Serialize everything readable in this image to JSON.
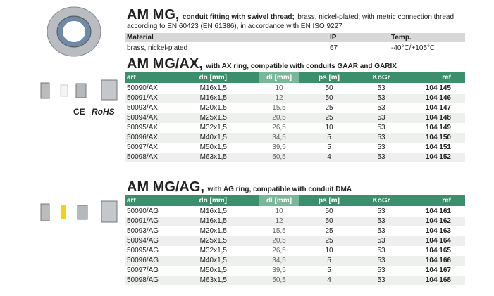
{
  "header": {
    "title": "AM MG,",
    "subtitle": "conduit fitting with swivel thread;",
    "description": [
      "brass, nickel-plated; with metric connection thread",
      "according to EN 60423 (EN 61386), in accordance with EN ISO 9227"
    ]
  },
  "material_table": {
    "columns": [
      "Material",
      "IP",
      "Temp."
    ],
    "rows": [
      [
        "brass, nickel-plated",
        "67",
        "-40°C/+105°C"
      ]
    ]
  },
  "certifications": [
    "CE",
    "RoHS"
  ],
  "sections": [
    {
      "title": "AM MG/AX,",
      "subtitle": "with AX ring, compatible with conduits GAAR and GARIX",
      "columns": [
        "art",
        "dn [mm]",
        "di [mm]",
        "ps [m]",
        "KoGr",
        "ref"
      ],
      "rows": [
        [
          "50090/AX",
          "M16x1,5",
          "10",
          "50",
          "53",
          "104 145"
        ],
        [
          "50091/AX",
          "M16x1,5",
          "12",
          "50",
          "53",
          "104 146"
        ],
        [
          "50093/AX",
          "M20x1,5",
          "15,5",
          "25",
          "53",
          "104 147"
        ],
        [
          "50094/AX",
          "M25x1,5",
          "20,5",
          "25",
          "53",
          "104 148"
        ],
        [
          "50095/AX",
          "M32x1,5",
          "26,5",
          "10",
          "53",
          "104 149"
        ],
        [
          "50096/AX",
          "M40x1,5",
          "34,5",
          "5",
          "53",
          "104 150"
        ],
        [
          "50097/AX",
          "M50x1,5",
          "39,5",
          "5",
          "53",
          "104 151"
        ],
        [
          "50098/AX",
          "M63x1,5",
          "50,5",
          "4",
          "53",
          "104 152"
        ]
      ]
    },
    {
      "title": "AM MG/AG,",
      "subtitle": "with AG ring, compatible with conduit DMA",
      "columns": [
        "art",
        "dn [mm]",
        "di [mm]",
        "ps [m]",
        "KoGr",
        "ref"
      ],
      "rows": [
        [
          "50090/AG",
          "M16x1,5",
          "10",
          "50",
          "53",
          "104 161"
        ],
        [
          "50091/AG",
          "M16x1,5",
          "12",
          "50",
          "53",
          "104 162"
        ],
        [
          "50093/AG",
          "M20x1,5",
          "15,5",
          "25",
          "53",
          "104 163"
        ],
        [
          "50094/AG",
          "M25x1,5",
          "20,5",
          "25",
          "53",
          "104 164"
        ],
        [
          "50095/AG",
          "M32x1,5",
          "26,5",
          "10",
          "53",
          "104 165"
        ],
        [
          "50096/AG",
          "M40x1,5",
          "34,5",
          "5",
          "53",
          "104 166"
        ],
        [
          "50097/AG",
          "M50x1,5",
          "39,5",
          "5",
          "53",
          "104 167"
        ],
        [
          "50098/AG",
          "M63x1,5",
          "50,5",
          "4",
          "53",
          "104 168"
        ]
      ]
    }
  ]
}
